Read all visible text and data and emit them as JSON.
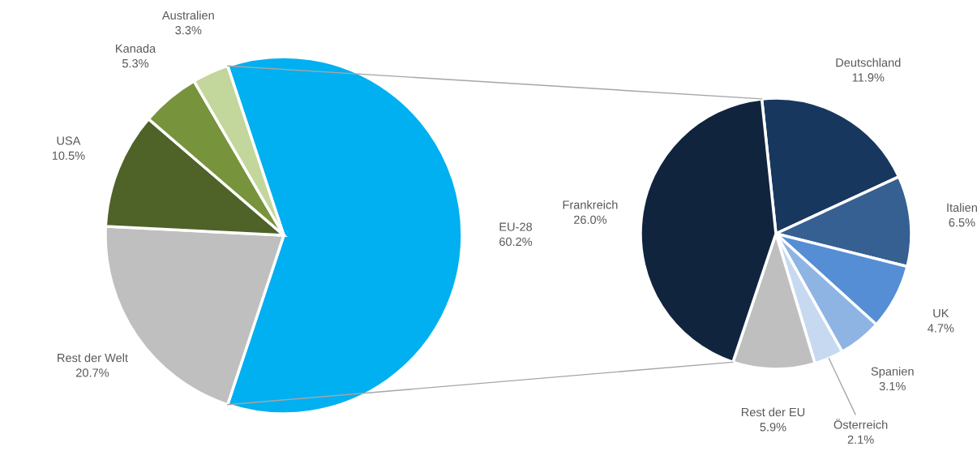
{
  "chart_data": [
    {
      "type": "pie",
      "categories": [
        "EU-28",
        "Rest der Welt",
        "USA",
        "Kanada",
        "Australien"
      ],
      "values": [
        60.2,
        20.7,
        10.5,
        5.3,
        3.3
      ],
      "colors": [
        "#00b0f0",
        "#bfbfbf",
        "#4f6228",
        "#77933c",
        "#c3d69b"
      ],
      "value_labels": [
        "60.2%",
        "20.7%",
        "10.5%",
        "5.3%",
        "3.3%"
      ]
    },
    {
      "type": "pie",
      "categories": [
        "Deutschland",
        "Italien",
        "UK",
        "Spanien",
        "Österreich",
        "Rest der EU",
        "Frankreich"
      ],
      "values": [
        11.9,
        6.5,
        4.7,
        3.1,
        2.1,
        5.9,
        26.0
      ],
      "colors": [
        "#17375e",
        "#366092",
        "#558ed5",
        "#8eb4e3",
        "#c6d9f1",
        "#bfbfbf",
        "#10243e"
      ],
      "value_labels": [
        "11.9%",
        "6.5%",
        "4.7%",
        "3.1%",
        "2.1%",
        "5.9%",
        "26.0%"
      ]
    }
  ]
}
